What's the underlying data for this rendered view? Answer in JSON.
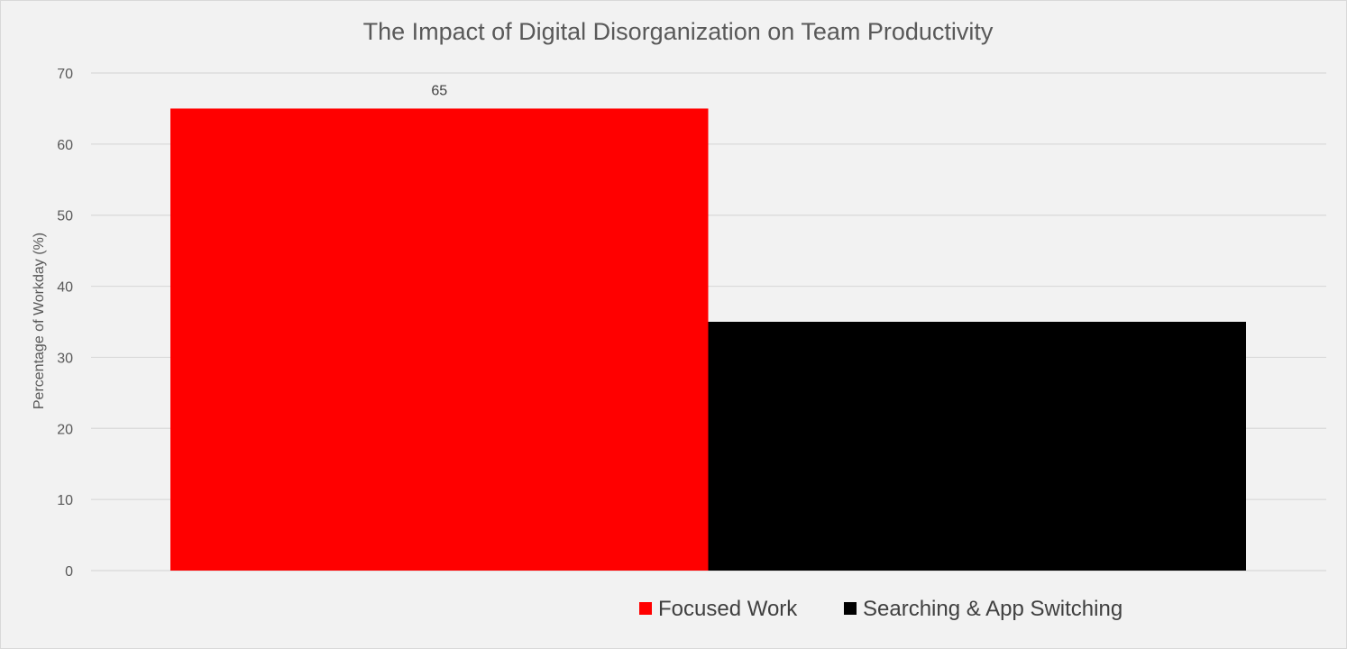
{
  "chart_data": {
    "type": "bar",
    "title": "The Impact of Digital Disorganization on Team Productivity",
    "ylabel": "Percentage of Workday (%)",
    "ylim": [
      0,
      70
    ],
    "yticks": [
      0,
      10,
      20,
      30,
      40,
      50,
      60,
      70
    ],
    "grid": true,
    "legend_position": "bottom",
    "series": [
      {
        "name": "Focused Work",
        "value": 65,
        "color": "#ff0000",
        "data_label": "65"
      },
      {
        "name": "Searching & App Switching",
        "value": 35,
        "color": "#000000",
        "data_label": ""
      }
    ]
  },
  "colors": {
    "background": "#f2f2f2",
    "grid": "#d9d9d9",
    "text": "#595959",
    "title": "#595959"
  }
}
